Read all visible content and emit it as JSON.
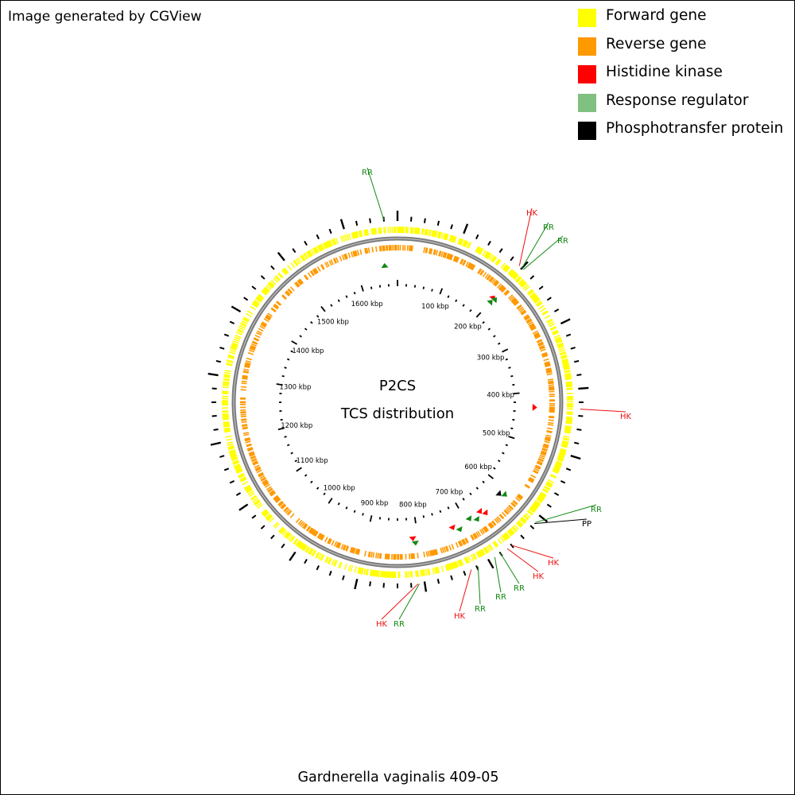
{
  "credit": "Image generated by CGView",
  "legend": [
    {
      "label": "Forward gene",
      "color": "#ffff00"
    },
    {
      "label": "Reverse gene",
      "color": "#ff9900"
    },
    {
      "label": "Histidine kinase",
      "color": "#ff0000"
    },
    {
      "label": "Response regulator",
      "color": "#80c080"
    },
    {
      "label": "Phosphotransfer protein",
      "color": "#000000"
    }
  ],
  "map": {
    "title_line1": "P2CS",
    "title_line2": "TCS distribution",
    "genome_length_kbp": 1680,
    "tick_labels": [
      "100 kbp",
      "200 kbp",
      "300 kbp",
      "400 kbp",
      "500 kbp",
      "600 kbp",
      "700 kbp",
      "800 kbp",
      "900 kbp",
      "1000 kbp",
      "1100 kbp",
      "1200 kbp",
      "1300 kbp",
      "1400 kbp",
      "1500 kbp",
      "1600 kbp"
    ],
    "annotation_colors": {
      "HK": "#ee1111",
      "RR": "#118811",
      "PP": "#000000"
    },
    "annotations": [
      {
        "label": "RR",
        "type": "RR",
        "pos_kbp": 1660
      },
      {
        "label": "HK",
        "type": "HK",
        "pos_kbp": 195
      },
      {
        "label": "RR",
        "type": "RR",
        "pos_kbp": 200
      },
      {
        "label": "RR",
        "type": "RR",
        "pos_kbp": 203
      },
      {
        "label": "HK",
        "type": "HK",
        "pos_kbp": 430
      },
      {
        "label": "RR",
        "type": "RR",
        "pos_kbp": 612
      },
      {
        "label": "PP",
        "type": "PP",
        "pos_kbp": 614
      },
      {
        "label": "HK",
        "type": "HK",
        "pos_kbp": 660
      },
      {
        "label": "HK",
        "type": "HK",
        "pos_kbp": 668
      },
      {
        "label": "RR",
        "type": "RR",
        "pos_kbp": 680
      },
      {
        "label": "RR",
        "type": "RR",
        "pos_kbp": 690
      },
      {
        "label": "RR",
        "type": "RR",
        "pos_kbp": 718
      },
      {
        "label": "HK",
        "type": "HK",
        "pos_kbp": 729
      },
      {
        "label": "RR",
        "type": "RR",
        "pos_kbp": 808
      },
      {
        "label": "HK",
        "type": "HK",
        "pos_kbp": 810
      }
    ],
    "tcs_markers": [
      {
        "type": "RR",
        "pos_kbp": 1655
      },
      {
        "type": "HK",
        "pos_kbp": 198
      },
      {
        "type": "RR",
        "pos_kbp": 200
      },
      {
        "type": "RR",
        "pos_kbp": 203
      },
      {
        "type": "HK",
        "pos_kbp": 430
      },
      {
        "type": "RR",
        "pos_kbp": 610
      },
      {
        "type": "PP",
        "pos_kbp": 616
      },
      {
        "type": "HK",
        "pos_kbp": 660
      },
      {
        "type": "HK",
        "pos_kbp": 667
      },
      {
        "type": "RR",
        "pos_kbp": 680
      },
      {
        "type": "RR",
        "pos_kbp": 692
      },
      {
        "type": "RR",
        "pos_kbp": 718
      },
      {
        "type": "HK",
        "pos_kbp": 729
      },
      {
        "type": "RR",
        "pos_kbp": 806
      },
      {
        "type": "HK",
        "pos_kbp": 810
      }
    ]
  },
  "genome_title": "Gardnerella vaginalis 409-05"
}
